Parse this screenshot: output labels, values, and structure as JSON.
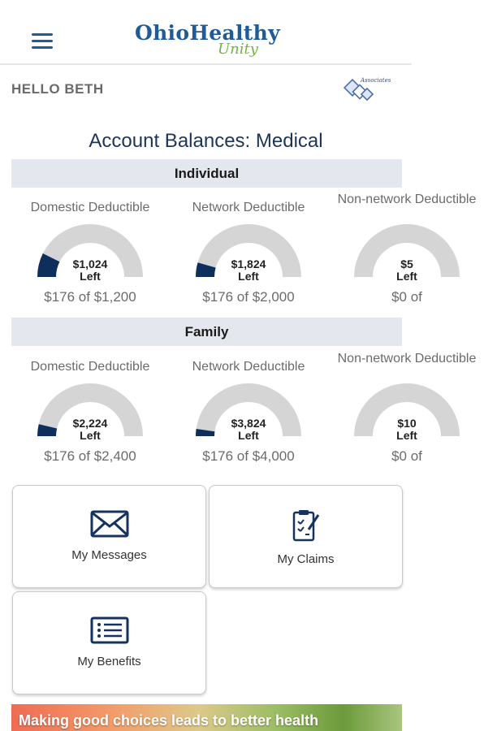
{
  "header": {
    "brand_main": "OhioHealthy",
    "brand_sub": "Unity"
  },
  "greeting": "HELLO BETH",
  "badge_logo_text": "Associates",
  "page_title": "Account Balances: Medical",
  "sections": [
    {
      "label": "Individual",
      "cards": [
        {
          "label": "Domestic Deductible",
          "amount_left": "$1,024",
          "left_label": "Left",
          "summary": "$176 of $1,200",
          "used_fraction": 0.147
        },
        {
          "label": "Network Deductible",
          "amount_left": "$1,824",
          "left_label": "Left",
          "summary": "$176 of $2,000",
          "used_fraction": 0.088
        },
        {
          "label": "Non-network Deductible",
          "amount_left": "$5",
          "left_label": "Left",
          "summary": "$0 of",
          "used_fraction": 0
        }
      ]
    },
    {
      "label": "Family",
      "cards": [
        {
          "label": "Domestic Deductible",
          "amount_left": "$2,224",
          "left_label": "Left",
          "summary": "$176 of $2,400",
          "used_fraction": 0.073
        },
        {
          "label": "Network Deductible",
          "amount_left": "$3,824",
          "left_label": "Left",
          "summary": "$176 of $4,000",
          "used_fraction": 0.044
        },
        {
          "label": "Non-network Deductible",
          "amount_left": "$10",
          "left_label": "Left",
          "summary": "$0 of",
          "used_fraction": 0
        }
      ]
    }
  ],
  "tiles": {
    "messages": {
      "label": "My Messages",
      "icon": "envelope-icon"
    },
    "claims": {
      "label": "My Claims",
      "icon": "clipboard-icon"
    },
    "benefits": {
      "label": "My Benefits",
      "icon": "list-icon"
    }
  },
  "banner": {
    "text": "Making good choices leads to better health"
  },
  "colors": {
    "brand_blue": "#1f5b96",
    "brand_green": "#6fb63b",
    "gauge_used": "#0e2f5c",
    "gauge_track": "#d5d5d5",
    "section_bg": "#e4e8ee"
  }
}
